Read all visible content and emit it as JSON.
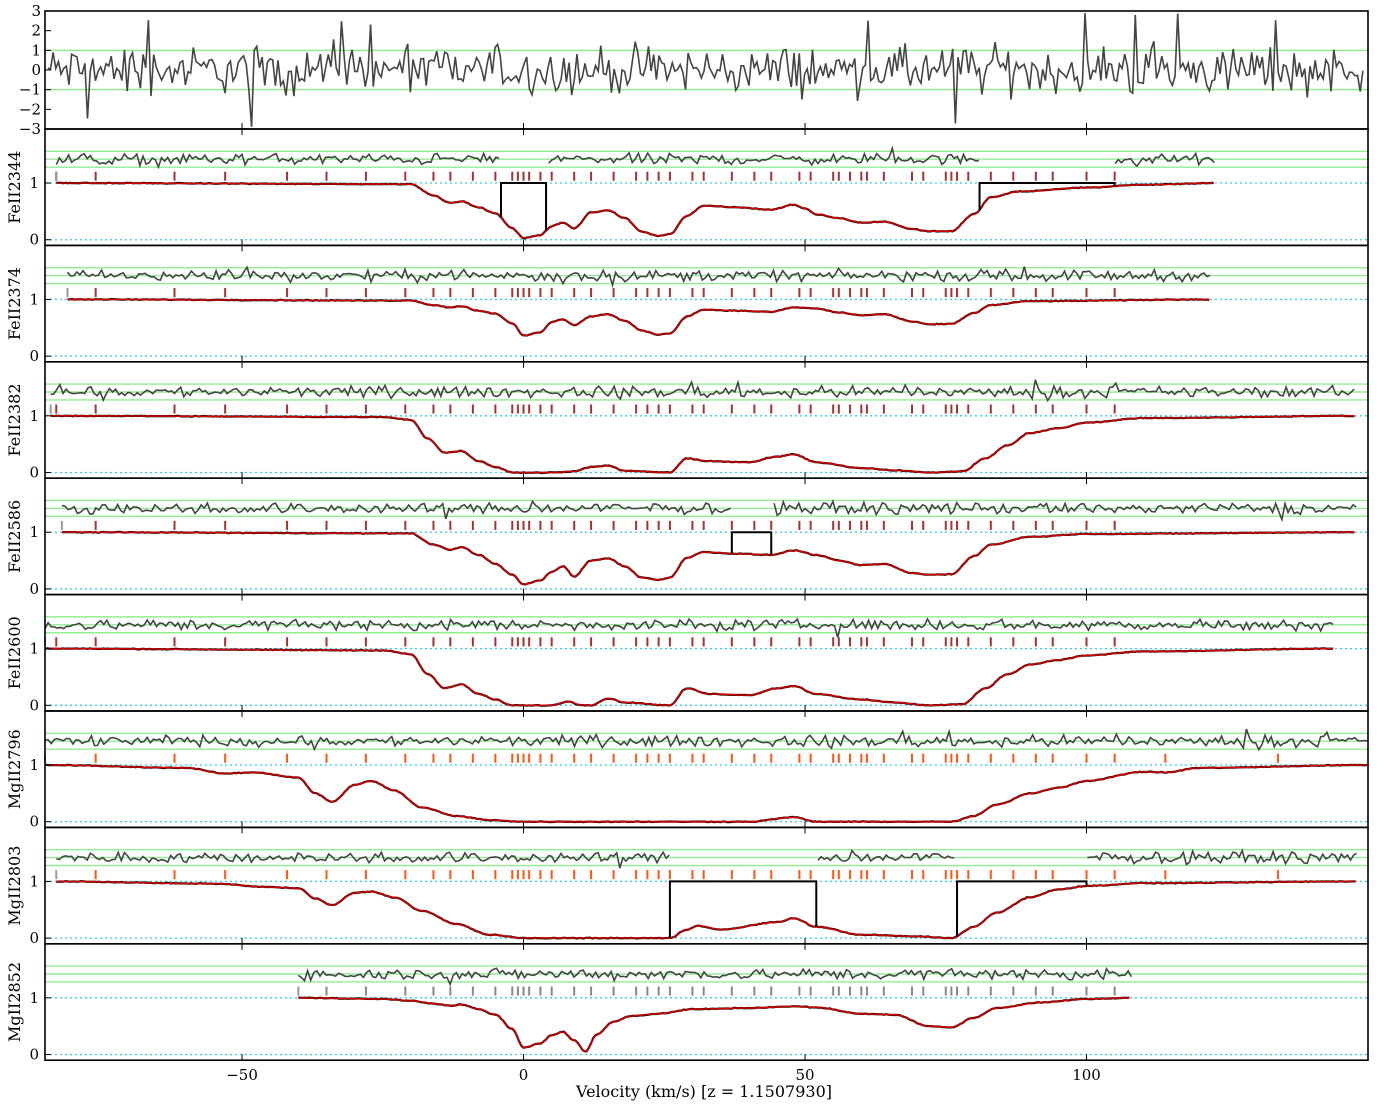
{
  "chart_data": {
    "type": "line",
    "title": "",
    "xlabel": "Velocity (km/s) [z = 1.1507930]",
    "xlim": [
      -85,
      150
    ],
    "x_ticks": [
      -50,
      0,
      50,
      100
    ],
    "x_tick_labels": [
      "−50",
      "0",
      "50",
      "100"
    ],
    "colors": {
      "data": "#000000",
      "model": "#cc0000",
      "residual": "#444444",
      "residual_band": "#90ee90",
      "continuum_zero": "#33ccee",
      "fe_ticks": "#a33333",
      "mg_ticks": "#ff5511",
      "mg2852_ticks": "#888888"
    },
    "residual_panel": {
      "ylim": [
        -3,
        3
      ],
      "y_ticks": [
        "3",
        "2",
        "1",
        "0",
        "−1",
        "−2",
        "−3"
      ],
      "band": [
        -1,
        1
      ]
    },
    "component_velocities_fe": [
      -83,
      -76,
      -62,
      -53,
      -42,
      -35,
      -28,
      -21,
      -16,
      -13,
      -9,
      -5,
      -2,
      -1,
      0,
      1,
      3,
      5,
      9,
      12,
      16,
      20,
      22,
      24,
      26,
      30,
      32,
      37,
      41,
      44,
      49,
      51,
      55,
      56,
      58,
      60,
      61,
      64,
      69,
      71,
      75,
      76,
      77,
      79,
      83,
      87,
      91,
      94,
      100,
      105
    ],
    "component_velocities_mg": [
      -76,
      -62,
      -53,
      -42,
      -35,
      -28,
      -21,
      -16,
      -13,
      -9,
      -5,
      -2,
      -1,
      0,
      1,
      3,
      5,
      9,
      12,
      16,
      20,
      22,
      24,
      26,
      30,
      32,
      37,
      41,
      44,
      49,
      51,
      55,
      56,
      58,
      60,
      61,
      64,
      69,
      71,
      75,
      76,
      77,
      79,
      83,
      87,
      91,
      94,
      100,
      105,
      114,
      134
    ],
    "panels": [
      {
        "ion": "FeII2344",
        "vrange": [
          -83,
          123
        ],
        "profile": [
          [
            -83,
            1.0
          ],
          [
            -20,
            0.98
          ],
          [
            -16,
            0.78
          ],
          [
            -13,
            0.65
          ],
          [
            -11,
            0.68
          ],
          [
            -8,
            0.57
          ],
          [
            -5,
            0.47
          ],
          [
            -2,
            0.2
          ],
          [
            0,
            0.03
          ],
          [
            3,
            0.08
          ],
          [
            5,
            0.24
          ],
          [
            7,
            0.3
          ],
          [
            9,
            0.2
          ],
          [
            12,
            0.48
          ],
          [
            15,
            0.52
          ],
          [
            18,
            0.38
          ],
          [
            21,
            0.14
          ],
          [
            24,
            0.07
          ],
          [
            26,
            0.1
          ],
          [
            29,
            0.42
          ],
          [
            32,
            0.6
          ],
          [
            38,
            0.57
          ],
          [
            44,
            0.53
          ],
          [
            48,
            0.62
          ],
          [
            50,
            0.55
          ],
          [
            52,
            0.45
          ],
          [
            56,
            0.38
          ],
          [
            60,
            0.3
          ],
          [
            64,
            0.32
          ],
          [
            69,
            0.19
          ],
          [
            72,
            0.15
          ],
          [
            76,
            0.15
          ],
          [
            80,
            0.45
          ],
          [
            83,
            0.75
          ],
          [
            88,
            0.85
          ],
          [
            100,
            0.92
          ],
          [
            110,
            0.97
          ],
          [
            123,
            1.0
          ]
        ],
        "masks": [
          [
            -4,
            4
          ],
          [
            81,
            105
          ]
        ]
      },
      {
        "ion": "FeII2374",
        "vrange": [
          -81,
          122
        ],
        "profile": [
          [
            -81,
            1.0
          ],
          [
            -20,
            0.98
          ],
          [
            -16,
            0.9
          ],
          [
            -13,
            0.86
          ],
          [
            -11,
            0.88
          ],
          [
            -8,
            0.8
          ],
          [
            -5,
            0.75
          ],
          [
            -2,
            0.58
          ],
          [
            0,
            0.36
          ],
          [
            3,
            0.42
          ],
          [
            5,
            0.6
          ],
          [
            7,
            0.65
          ],
          [
            9,
            0.55
          ],
          [
            12,
            0.7
          ],
          [
            15,
            0.74
          ],
          [
            18,
            0.62
          ],
          [
            21,
            0.45
          ],
          [
            24,
            0.38
          ],
          [
            26,
            0.4
          ],
          [
            29,
            0.7
          ],
          [
            32,
            0.82
          ],
          [
            38,
            0.8
          ],
          [
            44,
            0.78
          ],
          [
            48,
            0.86
          ],
          [
            52,
            0.84
          ],
          [
            56,
            0.77
          ],
          [
            60,
            0.72
          ],
          [
            64,
            0.74
          ],
          [
            69,
            0.61
          ],
          [
            72,
            0.56
          ],
          [
            76,
            0.57
          ],
          [
            80,
            0.76
          ],
          [
            83,
            0.9
          ],
          [
            90,
            0.97
          ],
          [
            122,
            1.0
          ]
        ],
        "masks": []
      },
      {
        "ion": "FeII2382",
        "vrange": [
          -84,
          148
        ],
        "profile": [
          [
            -84,
            1.0
          ],
          [
            -25,
            0.98
          ],
          [
            -20,
            0.93
          ],
          [
            -17,
            0.6
          ],
          [
            -14,
            0.35
          ],
          [
            -11,
            0.38
          ],
          [
            -8,
            0.2
          ],
          [
            -5,
            0.1
          ],
          [
            -2,
            0.0
          ],
          [
            5,
            0.0
          ],
          [
            9,
            0.02
          ],
          [
            12,
            0.1
          ],
          [
            15,
            0.12
          ],
          [
            18,
            0.03
          ],
          [
            26,
            0.0
          ],
          [
            29,
            0.25
          ],
          [
            33,
            0.2
          ],
          [
            40,
            0.18
          ],
          [
            45,
            0.28
          ],
          [
            48,
            0.32
          ],
          [
            52,
            0.18
          ],
          [
            60,
            0.08
          ],
          [
            66,
            0.04
          ],
          [
            72,
            0.0
          ],
          [
            78,
            0.02
          ],
          [
            82,
            0.25
          ],
          [
            86,
            0.48
          ],
          [
            90,
            0.7
          ],
          [
            95,
            0.78
          ],
          [
            100,
            0.88
          ],
          [
            110,
            0.96
          ],
          [
            148,
            1.0
          ]
        ],
        "masks": []
      },
      {
        "ion": "FeII2586",
        "vrange": [
          -82,
          148
        ],
        "profile": [
          [
            -82,
            1.0
          ],
          [
            -20,
            0.98
          ],
          [
            -16,
            0.78
          ],
          [
            -13,
            0.69
          ],
          [
            -11,
            0.74
          ],
          [
            -8,
            0.6
          ],
          [
            -5,
            0.44
          ],
          [
            -2,
            0.25
          ],
          [
            0,
            0.08
          ],
          [
            3,
            0.15
          ],
          [
            5,
            0.3
          ],
          [
            7,
            0.4
          ],
          [
            9,
            0.22
          ],
          [
            12,
            0.5
          ],
          [
            15,
            0.54
          ],
          [
            18,
            0.4
          ],
          [
            21,
            0.2
          ],
          [
            24,
            0.16
          ],
          [
            26,
            0.2
          ],
          [
            29,
            0.55
          ],
          [
            32,
            0.65
          ],
          [
            38,
            0.62
          ],
          [
            44,
            0.6
          ],
          [
            48,
            0.68
          ],
          [
            52,
            0.6
          ],
          [
            56,
            0.5
          ],
          [
            60,
            0.42
          ],
          [
            64,
            0.44
          ],
          [
            69,
            0.28
          ],
          [
            72,
            0.25
          ],
          [
            76,
            0.26
          ],
          [
            80,
            0.58
          ],
          [
            83,
            0.78
          ],
          [
            90,
            0.92
          ],
          [
            100,
            0.97
          ],
          [
            148,
            1.0
          ]
        ],
        "masks": [
          [
            37,
            44
          ]
        ]
      },
      {
        "ion": "FeII2600",
        "vrange": [
          -85,
          144
        ],
        "profile": [
          [
            -85,
            1.0
          ],
          [
            -25,
            0.97
          ],
          [
            -20,
            0.9
          ],
          [
            -17,
            0.55
          ],
          [
            -14,
            0.3
          ],
          [
            -11,
            0.37
          ],
          [
            -8,
            0.2
          ],
          [
            -5,
            0.1
          ],
          [
            -2,
            0.0
          ],
          [
            5,
            0.0
          ],
          [
            8,
            0.07
          ],
          [
            10,
            0.01
          ],
          [
            12,
            0.0
          ],
          [
            15,
            0.12
          ],
          [
            18,
            0.05
          ],
          [
            26,
            0.0
          ],
          [
            29,
            0.3
          ],
          [
            33,
            0.2
          ],
          [
            40,
            0.18
          ],
          [
            45,
            0.3
          ],
          [
            48,
            0.34
          ],
          [
            52,
            0.2
          ],
          [
            60,
            0.1
          ],
          [
            66,
            0.05
          ],
          [
            72,
            0.0
          ],
          [
            78,
            0.02
          ],
          [
            82,
            0.3
          ],
          [
            86,
            0.55
          ],
          [
            90,
            0.72
          ],
          [
            95,
            0.8
          ],
          [
            100,
            0.88
          ],
          [
            110,
            0.95
          ],
          [
            144,
            1.0
          ]
        ],
        "masks": []
      },
      {
        "ion": "MgII2796",
        "vrange": [
          -85,
          150
        ],
        "profile": [
          [
            -85,
            1.0
          ],
          [
            -60,
            0.95
          ],
          [
            -53,
            0.85
          ],
          [
            -48,
            0.87
          ],
          [
            -40,
            0.78
          ],
          [
            -37,
            0.5
          ],
          [
            -34,
            0.35
          ],
          [
            -30,
            0.65
          ],
          [
            -27,
            0.72
          ],
          [
            -23,
            0.55
          ],
          [
            -18,
            0.25
          ],
          [
            -12,
            0.1
          ],
          [
            -6,
            0.03
          ],
          [
            0,
            0.0
          ],
          [
            40,
            0.0
          ],
          [
            48,
            0.08
          ],
          [
            52,
            0.0
          ],
          [
            76,
            0.0
          ],
          [
            80,
            0.1
          ],
          [
            84,
            0.3
          ],
          [
            90,
            0.5
          ],
          [
            95,
            0.6
          ],
          [
            100,
            0.72
          ],
          [
            110,
            0.88
          ],
          [
            114,
            0.87
          ],
          [
            120,
            0.95
          ],
          [
            150,
            1.0
          ]
        ],
        "masks": []
      },
      {
        "ion": "MgII2803",
        "vrange": [
          -83,
          148
        ],
        "profile": [
          [
            -83,
            1.0
          ],
          [
            -55,
            0.96
          ],
          [
            -45,
            0.9
          ],
          [
            -40,
            0.88
          ],
          [
            -37,
            0.7
          ],
          [
            -34,
            0.58
          ],
          [
            -30,
            0.8
          ],
          [
            -27,
            0.82
          ],
          [
            -23,
            0.72
          ],
          [
            -18,
            0.48
          ],
          [
            -12,
            0.25
          ],
          [
            -6,
            0.06
          ],
          [
            0,
            0.0
          ],
          [
            26,
            0.0
          ],
          [
            29,
            0.15
          ],
          [
            31,
            0.22
          ],
          [
            35,
            0.15
          ],
          [
            45,
            0.28
          ],
          [
            48,
            0.35
          ],
          [
            52,
            0.2
          ],
          [
            60,
            0.06
          ],
          [
            70,
            0.03
          ],
          [
            76,
            0.0
          ],
          [
            80,
            0.2
          ],
          [
            84,
            0.45
          ],
          [
            90,
            0.72
          ],
          [
            95,
            0.86
          ],
          [
            100,
            0.92
          ],
          [
            110,
            0.97
          ],
          [
            148,
            1.0
          ]
        ],
        "masks": [
          [
            26,
            52
          ],
          [
            77,
            100
          ]
        ]
      },
      {
        "ion": "MgII2852",
        "vrange": [
          -40,
          108
        ],
        "profile": [
          [
            -40,
            1.0
          ],
          [
            -25,
            0.98
          ],
          [
            -20,
            0.95
          ],
          [
            -16,
            0.9
          ],
          [
            -13,
            0.86
          ],
          [
            -11,
            0.88
          ],
          [
            -8,
            0.8
          ],
          [
            -5,
            0.7
          ],
          [
            -2,
            0.45
          ],
          [
            0,
            0.12
          ],
          [
            3,
            0.2
          ],
          [
            5,
            0.34
          ],
          [
            7,
            0.4
          ],
          [
            9,
            0.25
          ],
          [
            11,
            0.05
          ],
          [
            13,
            0.35
          ],
          [
            16,
            0.58
          ],
          [
            19,
            0.68
          ],
          [
            24,
            0.72
          ],
          [
            30,
            0.8
          ],
          [
            40,
            0.82
          ],
          [
            48,
            0.85
          ],
          [
            52,
            0.83
          ],
          [
            60,
            0.72
          ],
          [
            66,
            0.7
          ],
          [
            72,
            0.5
          ],
          [
            76,
            0.48
          ],
          [
            80,
            0.65
          ],
          [
            84,
            0.82
          ],
          [
            92,
            0.92
          ],
          [
            100,
            0.98
          ],
          [
            108,
            1.0
          ]
        ],
        "masks": []
      }
    ]
  }
}
